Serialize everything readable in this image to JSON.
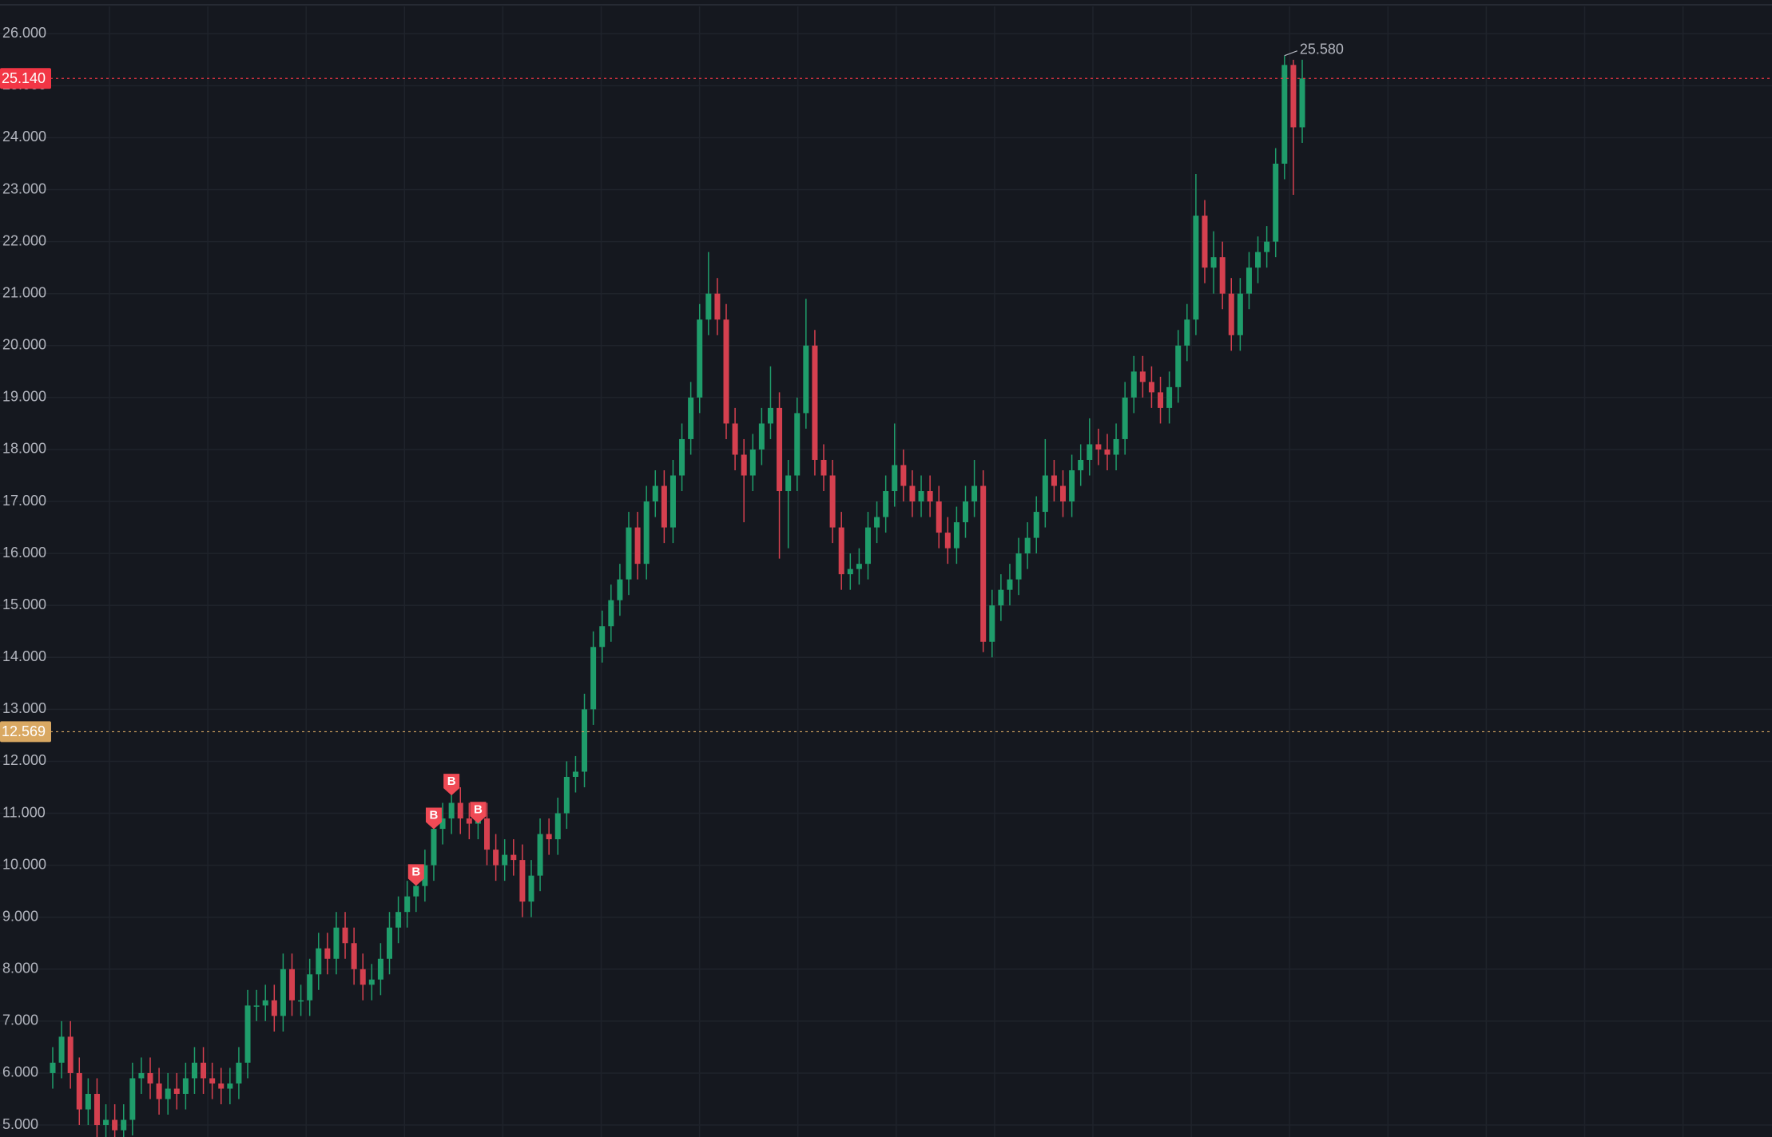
{
  "chart_data": {
    "type": "candlestick",
    "up_color": "#1f9d6b",
    "down_color": "#d5404f",
    "grid": true,
    "ylim": [
      4.77,
      26.65
    ],
    "yticks": [
      {
        "value": 5,
        "label": "5.000"
      },
      {
        "value": 6,
        "label": "6.000"
      },
      {
        "value": 7,
        "label": "7.000"
      },
      {
        "value": 8,
        "label": "8.000"
      },
      {
        "value": 9,
        "label": "9.000"
      },
      {
        "value": 10,
        "label": "10.000"
      },
      {
        "value": 11,
        "label": "11.000"
      },
      {
        "value": 12,
        "label": "12.000"
      },
      {
        "value": 13,
        "label": "13.000"
      },
      {
        "value": 14,
        "label": "14.000"
      },
      {
        "value": 15,
        "label": "15.000"
      },
      {
        "value": 16,
        "label": "16.000"
      },
      {
        "value": 17,
        "label": "17.000"
      },
      {
        "value": 18,
        "label": "18.000"
      },
      {
        "value": 19,
        "label": "19.000"
      },
      {
        "value": 20,
        "label": "20.000"
      },
      {
        "value": 21,
        "label": "21.000"
      },
      {
        "value": 22,
        "label": "22.000"
      },
      {
        "value": 23,
        "label": "23.000"
      },
      {
        "value": 24,
        "label": "24.000"
      },
      {
        "value": 25,
        "label": "25.000"
      },
      {
        "value": 26,
        "label": "26.000"
      }
    ],
    "open": [
      6.0,
      6.2,
      6.7,
      6.0,
      5.3,
      5.6,
      5.0,
      5.1,
      4.9,
      5.1,
      5.9,
      6.0,
      5.8,
      5.5,
      5.7,
      5.6,
      5.9,
      6.2,
      5.9,
      5.8,
      5.7,
      5.8,
      6.2,
      7.3,
      7.3,
      7.4,
      7.1,
      8.0,
      7.4,
      7.4,
      7.9,
      8.4,
      8.2,
      8.8,
      8.5,
      8.0,
      7.7,
      7.8,
      8.2,
      8.8,
      9.1,
      9.4,
      9.6,
      10.0,
      10.7,
      10.9,
      11.2,
      10.9,
      10.8,
      10.9,
      10.3,
      10.0,
      10.2,
      10.1,
      9.3,
      9.8,
      10.6,
      10.5,
      11.0,
      11.7,
      11.8,
      13.0,
      14.2,
      14.6,
      15.1,
      15.5,
      16.5,
      15.8,
      17.0,
      17.3,
      16.5,
      17.5,
      18.2,
      19.0,
      20.5,
      21.0,
      20.5,
      18.5,
      17.9,
      17.5,
      18.0,
      18.5,
      18.8,
      17.2,
      17.5,
      18.7,
      20.0,
      17.8,
      17.5,
      16.5,
      15.6,
      15.7,
      15.8,
      16.5,
      16.7,
      17.2,
      17.7,
      17.3,
      17.0,
      17.2,
      17.0,
      16.4,
      16.1,
      16.6,
      17.0,
      17.3,
      14.3,
      15.0,
      15.3,
      15.5,
      16.0,
      16.3,
      16.8,
      17.5,
      17.3,
      17.0,
      17.6,
      17.8,
      18.1,
      18.0,
      17.9,
      18.2,
      19.0,
      19.5,
      19.3,
      19.1,
      18.8,
      19.2,
      20.0,
      20.5,
      22.5,
      21.5,
      21.7,
      21.0,
      20.2,
      21.0,
      21.5,
      21.8,
      22.0,
      23.5,
      25.4,
      24.2
    ],
    "high": [
      6.5,
      7.0,
      7.0,
      6.3,
      5.9,
      5.9,
      5.4,
      5.4,
      5.4,
      6.2,
      6.3,
      6.3,
      6.1,
      6.0,
      6.0,
      6.2,
      6.5,
      6.5,
      6.2,
      6.1,
      6.1,
      6.5,
      7.6,
      7.6,
      7.7,
      7.7,
      8.3,
      8.3,
      7.7,
      8.2,
      8.7,
      8.7,
      9.1,
      9.1,
      8.8,
      8.3,
      8.1,
      8.5,
      9.1,
      9.4,
      9.7,
      9.9,
      10.3,
      11.0,
      11.2,
      11.5,
      11.5,
      11.2,
      11.2,
      11.2,
      10.6,
      10.5,
      10.5,
      10.4,
      10.1,
      10.9,
      10.9,
      11.3,
      12.0,
      12.1,
      13.3,
      14.5,
      14.9,
      15.4,
      15.8,
      16.8,
      16.8,
      17.3,
      17.6,
      17.6,
      17.8,
      18.5,
      19.3,
      20.8,
      21.8,
      21.3,
      20.8,
      18.8,
      18.2,
      18.3,
      18.8,
      19.6,
      19.1,
      17.8,
      19.0,
      20.9,
      20.3,
      18.1,
      17.8,
      16.8,
      16.0,
      16.1,
      16.8,
      17.0,
      17.5,
      18.5,
      18.0,
      17.6,
      17.5,
      17.5,
      17.3,
      16.7,
      16.9,
      17.3,
      17.8,
      17.6,
      15.3,
      15.6,
      15.8,
      16.3,
      16.6,
      17.1,
      18.2,
      17.8,
      17.6,
      17.9,
      18.1,
      18.6,
      18.4,
      18.3,
      18.5,
      19.3,
      19.8,
      19.8,
      19.6,
      19.4,
      19.5,
      20.3,
      20.8,
      23.3,
      22.8,
      22.2,
      22.0,
      21.3,
      21.3,
      21.8,
      22.1,
      22.3,
      23.8,
      25.58,
      25.5,
      25.5
    ],
    "low": [
      5.7,
      5.9,
      5.7,
      5.0,
      5.0,
      4.7,
      4.7,
      4.6,
      4.6,
      4.8,
      5.6,
      5.5,
      5.2,
      5.2,
      5.3,
      5.3,
      5.6,
      5.6,
      5.5,
      5.4,
      5.4,
      5.5,
      5.9,
      7.0,
      7.0,
      6.8,
      6.8,
      7.1,
      7.1,
      7.1,
      7.6,
      7.9,
      7.9,
      8.2,
      7.7,
      7.4,
      7.4,
      7.5,
      7.9,
      8.5,
      8.8,
      9.1,
      9.3,
      9.7,
      10.4,
      10.6,
      10.6,
      10.5,
      10.5,
      10.0,
      9.7,
      9.7,
      9.8,
      9.0,
      9.0,
      9.5,
      10.2,
      10.2,
      10.7,
      11.4,
      11.5,
      12.7,
      13.9,
      14.3,
      14.8,
      15.2,
      15.5,
      15.5,
      16.7,
      16.2,
      16.2,
      17.2,
      17.9,
      18.7,
      20.2,
      20.2,
      18.2,
      17.6,
      16.6,
      17.2,
      17.7,
      18.2,
      15.9,
      16.1,
      17.2,
      18.4,
      17.5,
      17.2,
      16.2,
      15.3,
      15.3,
      15.4,
      15.5,
      16.2,
      16.4,
      16.9,
      17.0,
      16.7,
      16.7,
      16.7,
      16.1,
      15.8,
      15.8,
      16.3,
      16.7,
      14.1,
      14.0,
      14.7,
      15.0,
      15.2,
      15.7,
      16.0,
      16.5,
      17.0,
      16.7,
      16.7,
      17.3,
      17.5,
      17.7,
      17.6,
      17.6,
      17.9,
      18.7,
      19.0,
      18.8,
      18.5,
      18.5,
      18.9,
      19.7,
      20.2,
      21.2,
      21.0,
      20.7,
      19.9,
      19.9,
      20.7,
      21.2,
      21.5,
      21.7,
      23.2,
      22.9,
      23.9
    ],
    "close": [
      6.2,
      6.7,
      6.0,
      5.3,
      5.6,
      5.0,
      5.1,
      4.9,
      5.1,
      5.9,
      6.0,
      5.8,
      5.5,
      5.7,
      5.6,
      5.9,
      6.2,
      5.9,
      5.8,
      5.7,
      5.8,
      6.2,
      7.3,
      7.3,
      7.4,
      7.1,
      8.0,
      7.4,
      7.4,
      7.9,
      8.4,
      8.2,
      8.8,
      8.5,
      8.0,
      7.7,
      7.8,
      8.2,
      8.8,
      9.1,
      9.4,
      9.6,
      10.0,
      10.7,
      10.9,
      11.2,
      10.9,
      10.8,
      10.9,
      10.3,
      10.0,
      10.2,
      10.1,
      9.3,
      9.8,
      10.6,
      10.5,
      11.0,
      11.7,
      11.8,
      13.0,
      14.2,
      14.6,
      15.1,
      15.5,
      16.5,
      15.8,
      17.0,
      17.3,
      16.5,
      17.5,
      18.2,
      19.0,
      20.5,
      21.0,
      20.5,
      18.5,
      17.9,
      17.5,
      18.0,
      18.5,
      18.8,
      17.2,
      17.5,
      18.7,
      20.0,
      17.8,
      17.5,
      16.5,
      15.6,
      15.7,
      15.8,
      16.5,
      16.7,
      17.2,
      17.7,
      17.3,
      17.0,
      17.2,
      17.0,
      16.4,
      16.1,
      16.6,
      17.0,
      17.3,
      14.3,
      15.0,
      15.3,
      15.5,
      16.0,
      16.3,
      16.8,
      17.5,
      17.3,
      17.0,
      17.6,
      17.8,
      18.1,
      18.0,
      17.9,
      18.2,
      19.0,
      19.5,
      19.3,
      19.1,
      18.8,
      19.2,
      20.0,
      20.5,
      22.5,
      21.5,
      21.7,
      21.0,
      20.2,
      21.0,
      21.5,
      21.8,
      22.0,
      23.5,
      25.4,
      24.2,
      25.14
    ],
    "max_label": {
      "value": 25.58,
      "label": "25.580"
    },
    "price_lines": [
      {
        "price": {
          "value": 25.14,
          "label": "25.140"
        },
        "color": "#f23645"
      },
      {
        "price": 12.569,
        "color": "#d9a862"
      }
    ],
    "markers": [
      {
        "label": "B",
        "bar": 41,
        "price": 9.65
      },
      {
        "label": "B",
        "bar": 43,
        "price": 10.74
      },
      {
        "label": "B",
        "bar": 45,
        "price": 11.39
      },
      {
        "label": "B",
        "bar": 48,
        "price": 10.85
      }
    ]
  }
}
